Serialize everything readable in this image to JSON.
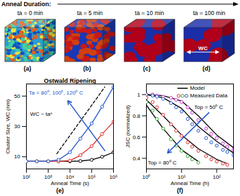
{
  "header": {
    "title": "Anneal Duration:",
    "panels": [
      {
        "label": "ta = 0 min",
        "tag": "(a)"
      },
      {
        "label": "ta = 5 min",
        "tag": "(b)"
      },
      {
        "label": "ta = 10 min",
        "tag": "(c)"
      },
      {
        "label": "ta = 100 min",
        "tag": "(d)",
        "annotation": "WC"
      }
    ]
  },
  "chart_data": [
    {
      "type": "line",
      "title": "Ostwald Ripening",
      "caption": "(e)",
      "x_label": "Anneal Time (s)",
      "y_label": "Cluster Size, WC (nm)",
      "log": "x",
      "xlim": [
        100,
        1000000
      ],
      "xticks": [
        {
          "value": 100,
          "label": "10²"
        },
        {
          "value": 1000,
          "label": "10³"
        },
        {
          "value": 10000,
          "label": "10⁴"
        },
        {
          "value": 100000,
          "label": "10⁵"
        },
        {
          "value": 1000000,
          "label": "10⁶"
        }
      ],
      "ylim": [
        2,
        58
      ],
      "yticks": [
        10,
        30,
        50
      ],
      "series": [
        {
          "color": "#000000",
          "marker": "circle",
          "line_style": "solid",
          "x": [
            100,
            300,
            1000,
            3000,
            10000,
            30000,
            100000,
            300000,
            1000000
          ],
          "values": [
            7,
            7,
            7,
            7,
            7,
            7.2,
            8,
            10,
            13
          ]
        },
        {
          "color": "#e03030",
          "marker": "circle",
          "line_style": "solid",
          "x": [
            100,
            300,
            1000,
            3000,
            10000,
            30000,
            100000,
            300000,
            1000000
          ],
          "values": [
            7,
            7,
            7,
            7,
            7.5,
            11,
            17,
            25,
            33
          ]
        },
        {
          "color": "#2255cc",
          "marker": "circle",
          "line_style": "solid",
          "x": [
            100,
            300,
            1000,
            3000,
            10000,
            30000,
            100000,
            300000,
            1000000
          ],
          "values": [
            7,
            7,
            7,
            8,
            13,
            22,
            32,
            43,
            56
          ]
        },
        {
          "color": "#000000",
          "line_style": "dashed",
          "x": [
            2500,
            400000
          ],
          "values": [
            12,
            56
          ]
        }
      ],
      "annotations": [
        {
          "text": "Ta = 80⁰, 100⁰, 120⁰ C",
          "x": 130,
          "y": 52,
          "color": "#2255cc"
        },
        {
          "text": "WC ~ taⁿ",
          "x": 150,
          "y": 38,
          "color": "#000000"
        }
      ],
      "arrows": [
        {
          "x1": 400000,
          "y1": 14,
          "x2": 8000,
          "y2": 47,
          "color": "#2255cc"
        }
      ]
    },
    {
      "type": "line",
      "caption": "(f)",
      "x_label": "Anneal Time (h)",
      "y_label": "JSC (normalized)",
      "log": "x",
      "xlim": [
        1,
        300
      ],
      "xticks": [
        {
          "value": 1,
          "label": "10⁰"
        },
        {
          "value": 10,
          "label": "10¹"
        },
        {
          "value": 100,
          "label": "10²"
        }
      ],
      "ylim": [
        0.3,
        1.1
      ],
      "yticks": [
        0.4,
        0.6,
        0.8,
        1
      ],
      "legend": "top-right",
      "legend_items": [
        {
          "label": "Model",
          "color": "#000000",
          "marker": "line"
        },
        {
          "label": "Measured Data",
          "colors": [
            "#e03030",
            "#33aa33",
            "#2255cc"
          ],
          "marker": "circle"
        }
      ],
      "series": [
        {
          "type": "line",
          "color": "#000000",
          "x": [
            1,
            3,
            10,
            30,
            100,
            300
          ],
          "values": [
            1,
            0.99,
            0.94,
            0.8,
            0.62,
            0.5
          ]
        },
        {
          "type": "line",
          "color": "#000000",
          "x": [
            1,
            3,
            10,
            30,
            100,
            300
          ],
          "values": [
            1,
            0.97,
            0.87,
            0.7,
            0.56,
            0.45
          ]
        },
        {
          "type": "line",
          "color": "#000000",
          "x": [
            1,
            3,
            10,
            30,
            100,
            200
          ],
          "values": [
            0.95,
            0.8,
            0.62,
            0.49,
            0.39,
            0.35
          ]
        },
        {
          "type": "line",
          "color": "#000000",
          "x": [
            1,
            3,
            10,
            30
          ],
          "values": [
            0.9,
            0.68,
            0.48,
            0.37
          ]
        },
        {
          "type": "scatter",
          "color": "#cc33cc",
          "marker": "circle",
          "x": [
            1,
            1.5,
            2,
            3,
            5,
            7,
            10,
            15,
            20,
            30,
            50,
            70,
            100,
            150,
            200,
            300
          ],
          "values": [
            1,
            1,
            0.99,
            0.98,
            0.97,
            0.95,
            0.93,
            0.88,
            0.83,
            0.76,
            0.68,
            0.63,
            0.59,
            0.54,
            0.51,
            0.48
          ]
        },
        {
          "type": "scatter",
          "color": "#2255cc",
          "marker": "circle",
          "x": [
            1,
            1.5,
            2,
            3,
            5,
            7,
            10,
            15,
            20,
            30,
            50,
            70,
            100,
            150,
            200,
            300
          ],
          "values": [
            1,
            0.99,
            0.98,
            0.96,
            0.92,
            0.88,
            0.84,
            0.77,
            0.72,
            0.66,
            0.59,
            0.55,
            0.52,
            0.48,
            0.46,
            0.43
          ]
        },
        {
          "type": "scatter",
          "color": "#e03030",
          "marker": "circle",
          "x": [
            1,
            1.5,
            2,
            3,
            5,
            7,
            10,
            15,
            20,
            30,
            50,
            70,
            100,
            150,
            200
          ],
          "values": [
            0.97,
            0.93,
            0.88,
            0.81,
            0.72,
            0.66,
            0.61,
            0.55,
            0.51,
            0.47,
            0.42,
            0.39,
            0.37,
            0.35,
            0.34
          ]
        },
        {
          "type": "scatter",
          "color": "#33aa33",
          "marker": "circle",
          "x": [
            1,
            1.5,
            2,
            3,
            5,
            7,
            10,
            15,
            20,
            30
          ],
          "values": [
            0.93,
            0.85,
            0.77,
            0.68,
            0.58,
            0.52,
            0.47,
            0.42,
            0.39,
            0.36
          ]
        }
      ],
      "annotations": [
        {
          "text": "Top = 50⁰ C",
          "x": 23,
          "y": 0.88,
          "color": "#000000"
        },
        {
          "text": "Top = 80⁰ C",
          "x": 1.1,
          "y": 0.36,
          "color": "#000000"
        }
      ],
      "arrows": [
        {
          "x1": 60,
          "y1": 0.83,
          "x2": 4,
          "y2": 0.45,
          "color": "#2255cc"
        }
      ]
    }
  ]
}
